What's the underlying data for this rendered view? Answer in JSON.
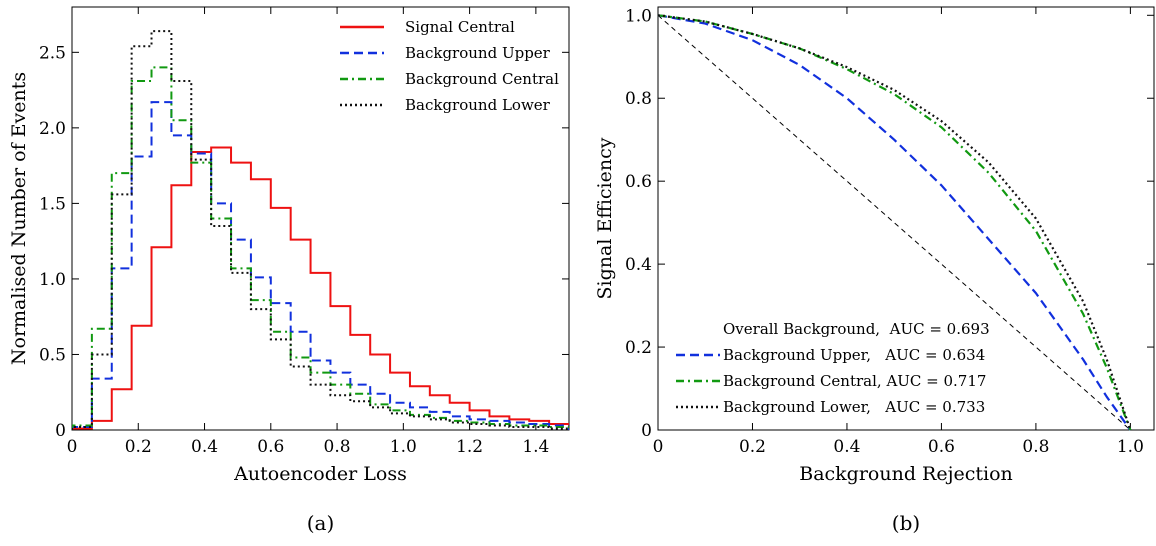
{
  "chart_data": [
    {
      "type": "histogram",
      "caption": "(a)",
      "xlabel": "Autoencoder Loss",
      "ylabel": "Normalised Number of Events",
      "xlim": [
        0,
        1.5
      ],
      "ylim": [
        0,
        2.8
      ],
      "x_ticks": [
        0,
        0.2,
        0.4,
        0.6,
        0.8,
        1.0,
        1.2,
        1.4
      ],
      "x_tick_labels": [
        "0",
        "0.2",
        "0.4",
        "0.6",
        "0.8",
        "1.0",
        "1.2",
        "1.4"
      ],
      "y_ticks": [
        0,
        0.5,
        1.0,
        1.5,
        2.0,
        2.5
      ],
      "y_tick_labels": [
        "0",
        "0.5",
        "1.0",
        "1.5",
        "2.0",
        "2.5"
      ],
      "legend_position": "top-right",
      "bin_edges": [
        0,
        0.06,
        0.12,
        0.18,
        0.24,
        0.3,
        0.36,
        0.42,
        0.48,
        0.54,
        0.6,
        0.66,
        0.72,
        0.78,
        0.84,
        0.9,
        0.96,
        1.02,
        1.08,
        1.14,
        1.2,
        1.26,
        1.32,
        1.38,
        1.44,
        1.5
      ],
      "series": [
        {
          "name": "Signal Central",
          "color": "#ee1111",
          "dash": "solid",
          "values": [
            0.01,
            0.06,
            0.27,
            0.69,
            1.21,
            1.62,
            1.84,
            1.87,
            1.77,
            1.66,
            1.47,
            1.26,
            1.04,
            0.82,
            0.63,
            0.5,
            0.38,
            0.29,
            0.23,
            0.18,
            0.13,
            0.09,
            0.07,
            0.06,
            0.04
          ]
        },
        {
          "name": "Background Upper",
          "color": "#1130dd",
          "dash": "dashed",
          "values": [
            0.02,
            0.34,
            1.07,
            1.81,
            2.17,
            1.95,
            1.83,
            1.5,
            1.26,
            1.01,
            0.84,
            0.65,
            0.46,
            0.38,
            0.3,
            0.24,
            0.18,
            0.15,
            0.12,
            0.09,
            0.07,
            0.06,
            0.05,
            0.04,
            0.03
          ]
        },
        {
          "name": "Background Central",
          "color": "#119911",
          "dash": "dashdot",
          "values": [
            0.03,
            0.67,
            1.7,
            2.31,
            2.4,
            2.05,
            1.77,
            1.4,
            1.07,
            0.86,
            0.65,
            0.48,
            0.38,
            0.3,
            0.24,
            0.17,
            0.13,
            0.1,
            0.08,
            0.06,
            0.05,
            0.04,
            0.03,
            0.03,
            0.02
          ]
        },
        {
          "name": "Background Lower",
          "color": "#111111",
          "dash": "dotted",
          "values": [
            0.02,
            0.5,
            1.56,
            2.54,
            2.64,
            2.31,
            1.79,
            1.35,
            1.04,
            0.8,
            0.6,
            0.42,
            0.3,
            0.23,
            0.19,
            0.15,
            0.11,
            0.09,
            0.07,
            0.05,
            0.04,
            0.03,
            0.02,
            0.02,
            0.01
          ]
        }
      ]
    },
    {
      "type": "line",
      "caption": "(b)",
      "xlabel": "Background Rejection",
      "ylabel": "Signal Efficiency",
      "xlim": [
        0,
        1.05
      ],
      "ylim": [
        0,
        1.02
      ],
      "x_ticks": [
        0,
        0.2,
        0.4,
        0.6,
        0.8,
        1.0
      ],
      "x_tick_labels": [
        "0",
        "0.2",
        "0.4",
        "0.6",
        "0.8",
        "1.0"
      ],
      "y_ticks": [
        0,
        0.2,
        0.4,
        0.6,
        0.8,
        1.0
      ],
      "y_tick_labels": [
        "0",
        "0.2",
        "0.4",
        "0.6",
        "0.8",
        "1.0"
      ],
      "legend_position": "bottom-left",
      "series": [
        {
          "name": "Overall Background,  AUC = 0.693",
          "color": "#000000",
          "dash": "shortdash",
          "legend_marker": false,
          "x": [
            0,
            1.0
          ],
          "y": [
            1.0,
            0
          ]
        },
        {
          "name": "Background Upper,   AUC = 0.634",
          "color": "#1130dd",
          "dash": "dashed",
          "x": [
            0,
            0.1,
            0.2,
            0.3,
            0.4,
            0.5,
            0.6,
            0.7,
            0.8,
            0.9,
            0.95,
            1.0
          ],
          "y": [
            1.0,
            0.98,
            0.94,
            0.88,
            0.8,
            0.7,
            0.59,
            0.46,
            0.33,
            0.17,
            0.08,
            0.0
          ]
        },
        {
          "name": "Background Central, AUC = 0.717",
          "color": "#119911",
          "dash": "dashdot",
          "x": [
            0,
            0.1,
            0.2,
            0.3,
            0.4,
            0.5,
            0.6,
            0.7,
            0.8,
            0.9,
            0.95,
            1.0
          ],
          "y": [
            1.0,
            0.985,
            0.955,
            0.92,
            0.87,
            0.81,
            0.73,
            0.62,
            0.48,
            0.28,
            0.15,
            0.0
          ]
        },
        {
          "name": "Background Lower,   AUC = 0.733",
          "color": "#111111",
          "dash": "dotted",
          "x": [
            0,
            0.1,
            0.2,
            0.3,
            0.4,
            0.5,
            0.6,
            0.7,
            0.8,
            0.9,
            0.95,
            1.0
          ],
          "y": [
            1.0,
            0.985,
            0.955,
            0.92,
            0.875,
            0.82,
            0.745,
            0.645,
            0.51,
            0.31,
            0.17,
            0.0
          ]
        }
      ]
    }
  ]
}
